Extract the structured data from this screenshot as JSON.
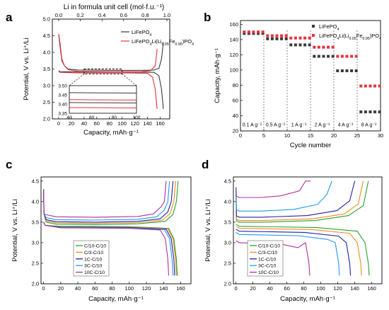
{
  "panel_labels": [
    "a",
    "b",
    "c",
    "d"
  ],
  "colors": {
    "lfp": "#3a3a3a",
    "lfmp": "#e8323c",
    "series5": [
      "#2ca02c",
      "#f28c1c",
      "#2020a8",
      "#1e9be6",
      "#b0309a"
    ]
  },
  "chart_data": [
    {
      "panel": "a",
      "type": "line",
      "xlabel": "Capacity, mAh·g⁻¹",
      "ylabel": "Potential, V vs. Li⁺/Li",
      "top_xlabel": "Li in formula unit cell (mol·f.u.⁻¹)",
      "xlim": [
        -10,
        175
      ],
      "ylim": [
        2.0,
        5.0
      ],
      "xticks": [
        0,
        20,
        40,
        60,
        80,
        100,
        120,
        140,
        160
      ],
      "yticks": [
        2.0,
        2.5,
        3.0,
        3.5,
        4.0,
        4.5,
        5.0
      ],
      "top_ticks": [
        "0.0",
        "0.2",
        "0.4",
        "0.6",
        "0.8",
        "1.0"
      ],
      "legend": [
        "LiFePO",
        "Li(Li",
        "Fe",
        ")PO"
      ],
      "legend_subs": [
        "4",
        "0.05",
        "0.95",
        "4"
      ],
      "inset": {
        "xlim": [
          40,
          100
        ],
        "ylim": [
          3.35,
          3.5
        ],
        "xticks": [
          40,
          60,
          80,
          100
        ],
        "yticks": [
          "3.35",
          "3.40",
          "3.45",
          "3.50"
        ]
      },
      "series": [
        {
          "name": "LiFePO4",
          "charge": [
            [
              0,
              4.55
            ],
            [
              2,
              4.2
            ],
            [
              5,
              3.75
            ],
            [
              9,
              3.6
            ],
            [
              15,
              3.5
            ],
            [
              30,
              3.47
            ],
            [
              80,
              3.46
            ],
            [
              130,
              3.46
            ],
            [
              150,
              3.47
            ],
            [
              158,
              3.52
            ],
            [
              162,
              3.8
            ],
            [
              165,
              4.3
            ]
          ],
          "discharge": [
            [
              0,
              3.45
            ],
            [
              2,
              3.42
            ],
            [
              30,
              3.41
            ],
            [
              100,
              3.41
            ],
            [
              150,
              3.4
            ],
            [
              158,
              3.3
            ],
            [
              162,
              2.9
            ],
            [
              165,
              2.3
            ]
          ]
        },
        {
          "name": "Li(Li0.05Fe0.95)PO4",
          "charge": [
            [
              0,
              4.55
            ],
            [
              2,
              4.3
            ],
            [
              5,
              3.8
            ],
            [
              9,
              3.6
            ],
            [
              15,
              3.48
            ],
            [
              30,
              3.43
            ],
            [
              80,
              3.42
            ],
            [
              130,
              3.42
            ],
            [
              145,
              3.45
            ],
            [
              152,
              3.6
            ],
            [
              154,
              3.9
            ],
            [
              155,
              4.1
            ]
          ],
          "discharge": [
            [
              0,
              3.43
            ],
            [
              2,
              3.4
            ],
            [
              30,
              3.38
            ],
            [
              100,
              3.38
            ],
            [
              140,
              3.37
            ],
            [
              148,
              3.25
            ],
            [
              152,
              2.9
            ],
            [
              155,
              2.3
            ]
          ]
        }
      ]
    },
    {
      "panel": "b",
      "type": "scatter",
      "xlabel": "Cycle number",
      "ylabel": "Capacity, mAh·g⁻¹",
      "xlim": [
        0,
        30
      ],
      "ylim": [
        20,
        165
      ],
      "xticks": [
        0,
        5,
        10,
        15,
        20,
        25,
        30
      ],
      "yticks": [
        20,
        40,
        60,
        80,
        100,
        120,
        140,
        160
      ],
      "legend": [
        "LiFePO",
        "Li(Li",
        "Fe",
        ")PO"
      ],
      "legend_subs": [
        "4",
        "0.05",
        "0.95",
        "4"
      ],
      "rates": [
        "0.1 A g⁻¹",
        "0.5 A g⁻¹",
        "1 A g⁻¹",
        "2 A g⁻¹",
        "4 A g⁻¹",
        "8 A g⁻¹"
      ],
      "series": [
        {
          "name": "LiFePO4",
          "values": [
            148,
            148,
            148,
            148,
            148,
            141,
            141,
            141,
            141,
            141,
            133,
            133,
            133,
            133,
            133,
            118,
            118,
            118,
            118,
            118,
            99,
            99,
            99,
            99,
            99,
            45,
            45,
            45,
            45,
            45
          ]
        },
        {
          "name": "Li(Li0.05Fe0.95)PO4",
          "values": [
            150,
            150,
            150,
            150,
            150,
            145,
            145,
            145,
            145,
            145,
            142,
            142,
            142,
            142,
            142,
            130,
            130,
            130,
            130,
            130,
            118,
            118,
            118,
            118,
            118,
            79,
            79,
            79,
            79,
            79
          ]
        }
      ]
    },
    {
      "panel": "c",
      "type": "line",
      "xlabel": "Capacity, mAh·g⁻¹",
      "ylabel": "Potential, V vs. Li⁺/Li",
      "xlim": [
        -3,
        172
      ],
      "ylim": [
        2.0,
        4.6
      ],
      "xticks": [
        0,
        20,
        40,
        60,
        80,
        100,
        120,
        140,
        160
      ],
      "yticks": [
        2.0,
        2.5,
        3.0,
        3.5,
        4.0,
        4.5
      ],
      "legend": [
        "C/10-C/10",
        "C/3-C/10",
        "1C-C/10",
        "3C-C/10",
        "10C-C/10"
      ],
      "series": [
        {
          "name": "C/10-C/10",
          "end": 157,
          "flat": 3.44
        },
        {
          "name": "C/3-C/10",
          "end": 154,
          "flat": 3.47
        },
        {
          "name": "1C-C/10",
          "end": 151,
          "flat": 3.5
        },
        {
          "name": "3C-C/10",
          "end": 147,
          "flat": 3.55
        },
        {
          "name": "10C-C/10",
          "end": 143,
          "flat": 3.62
        }
      ],
      "discharge_end": [
        156,
        155,
        153,
        151,
        146
      ]
    },
    {
      "panel": "d",
      "type": "line",
      "xlabel": "Capacity, mAh·g⁻¹",
      "ylabel": "Potential, V vs. Li⁺/Li",
      "xlim": [
        -3,
        172
      ],
      "ylim": [
        2.0,
        4.6
      ],
      "xticks": [
        0,
        20,
        40,
        60,
        80,
        100,
        120,
        140,
        160
      ],
      "yticks": [
        2.0,
        2.5,
        3.0,
        3.5,
        4.0,
        4.5
      ],
      "legend": [
        "C/10-C/10",
        "C/3-C/10",
        "1C-C/10",
        "3C-C/10",
        "10C-C/10"
      ],
      "series": [
        {
          "name": "C/10-C/10",
          "charge_end": 156,
          "charge_flat": 3.48,
          "disc_end": 157,
          "disc_flat": 3.4
        },
        {
          "name": "C/3-C/10",
          "charge_end": 150,
          "charge_flat": 3.52,
          "disc_end": 148,
          "disc_flat": 3.35
        },
        {
          "name": "1C-C/10",
          "charge_end": 140,
          "charge_flat": 3.6,
          "disc_end": 135,
          "disc_flat": 3.28
        },
        {
          "name": "3C-C/10",
          "charge_end": 113,
          "charge_flat": 3.75,
          "disc_end": 122,
          "disc_flat": 3.2
        },
        {
          "name": "10C-C/10",
          "charge_end": 88,
          "charge_flat": 4.08,
          "disc_end": 87,
          "disc_flat": 3.0
        }
      ]
    }
  ]
}
